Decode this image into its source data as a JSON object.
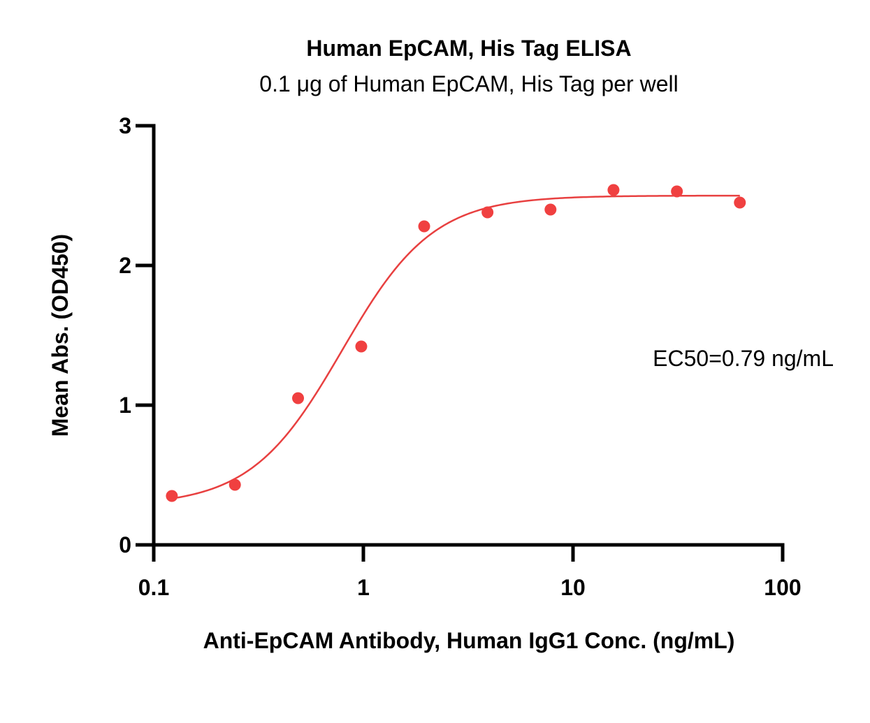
{
  "chart_data": {
    "type": "scatter",
    "title": "Human EpCAM, His Tag ELISA",
    "subtitle": "0.1 μg of Human EpCAM, His Tag per well",
    "xlabel": "Anti-EpCAM Antibody, Human IgG1 Conc. (ng/mL)",
    "ylabel": "Mean Abs. (OD450)",
    "xscale": "log",
    "xlim": [
      0.1,
      100
    ],
    "ylim": [
      0,
      3
    ],
    "xticks": [
      0.1,
      1,
      10,
      100
    ],
    "xtick_labels": [
      "0.1",
      "1",
      "10",
      "100"
    ],
    "yticks": [
      0,
      1,
      2,
      3
    ],
    "ytick_labels": [
      "0",
      "1",
      "2",
      "3"
    ],
    "grid": false,
    "legend": "none",
    "series": [
      {
        "color": "#f04040",
        "x": [
          0.122,
          0.244,
          0.488,
          0.977,
          1.95,
          3.91,
          7.81,
          15.6,
          31.3,
          62.5
        ],
        "y": [
          0.35,
          0.43,
          1.05,
          1.42,
          2.28,
          2.38,
          2.4,
          2.54,
          2.53,
          2.45
        ]
      }
    ],
    "fit": {
      "model": "4PL",
      "color": "#e84040",
      "bottom": 0.28,
      "top": 2.5,
      "ec50": 0.79,
      "hill": 2.0
    },
    "annotations": [
      {
        "text": "EC50=0.79 ng/mL"
      }
    ]
  }
}
